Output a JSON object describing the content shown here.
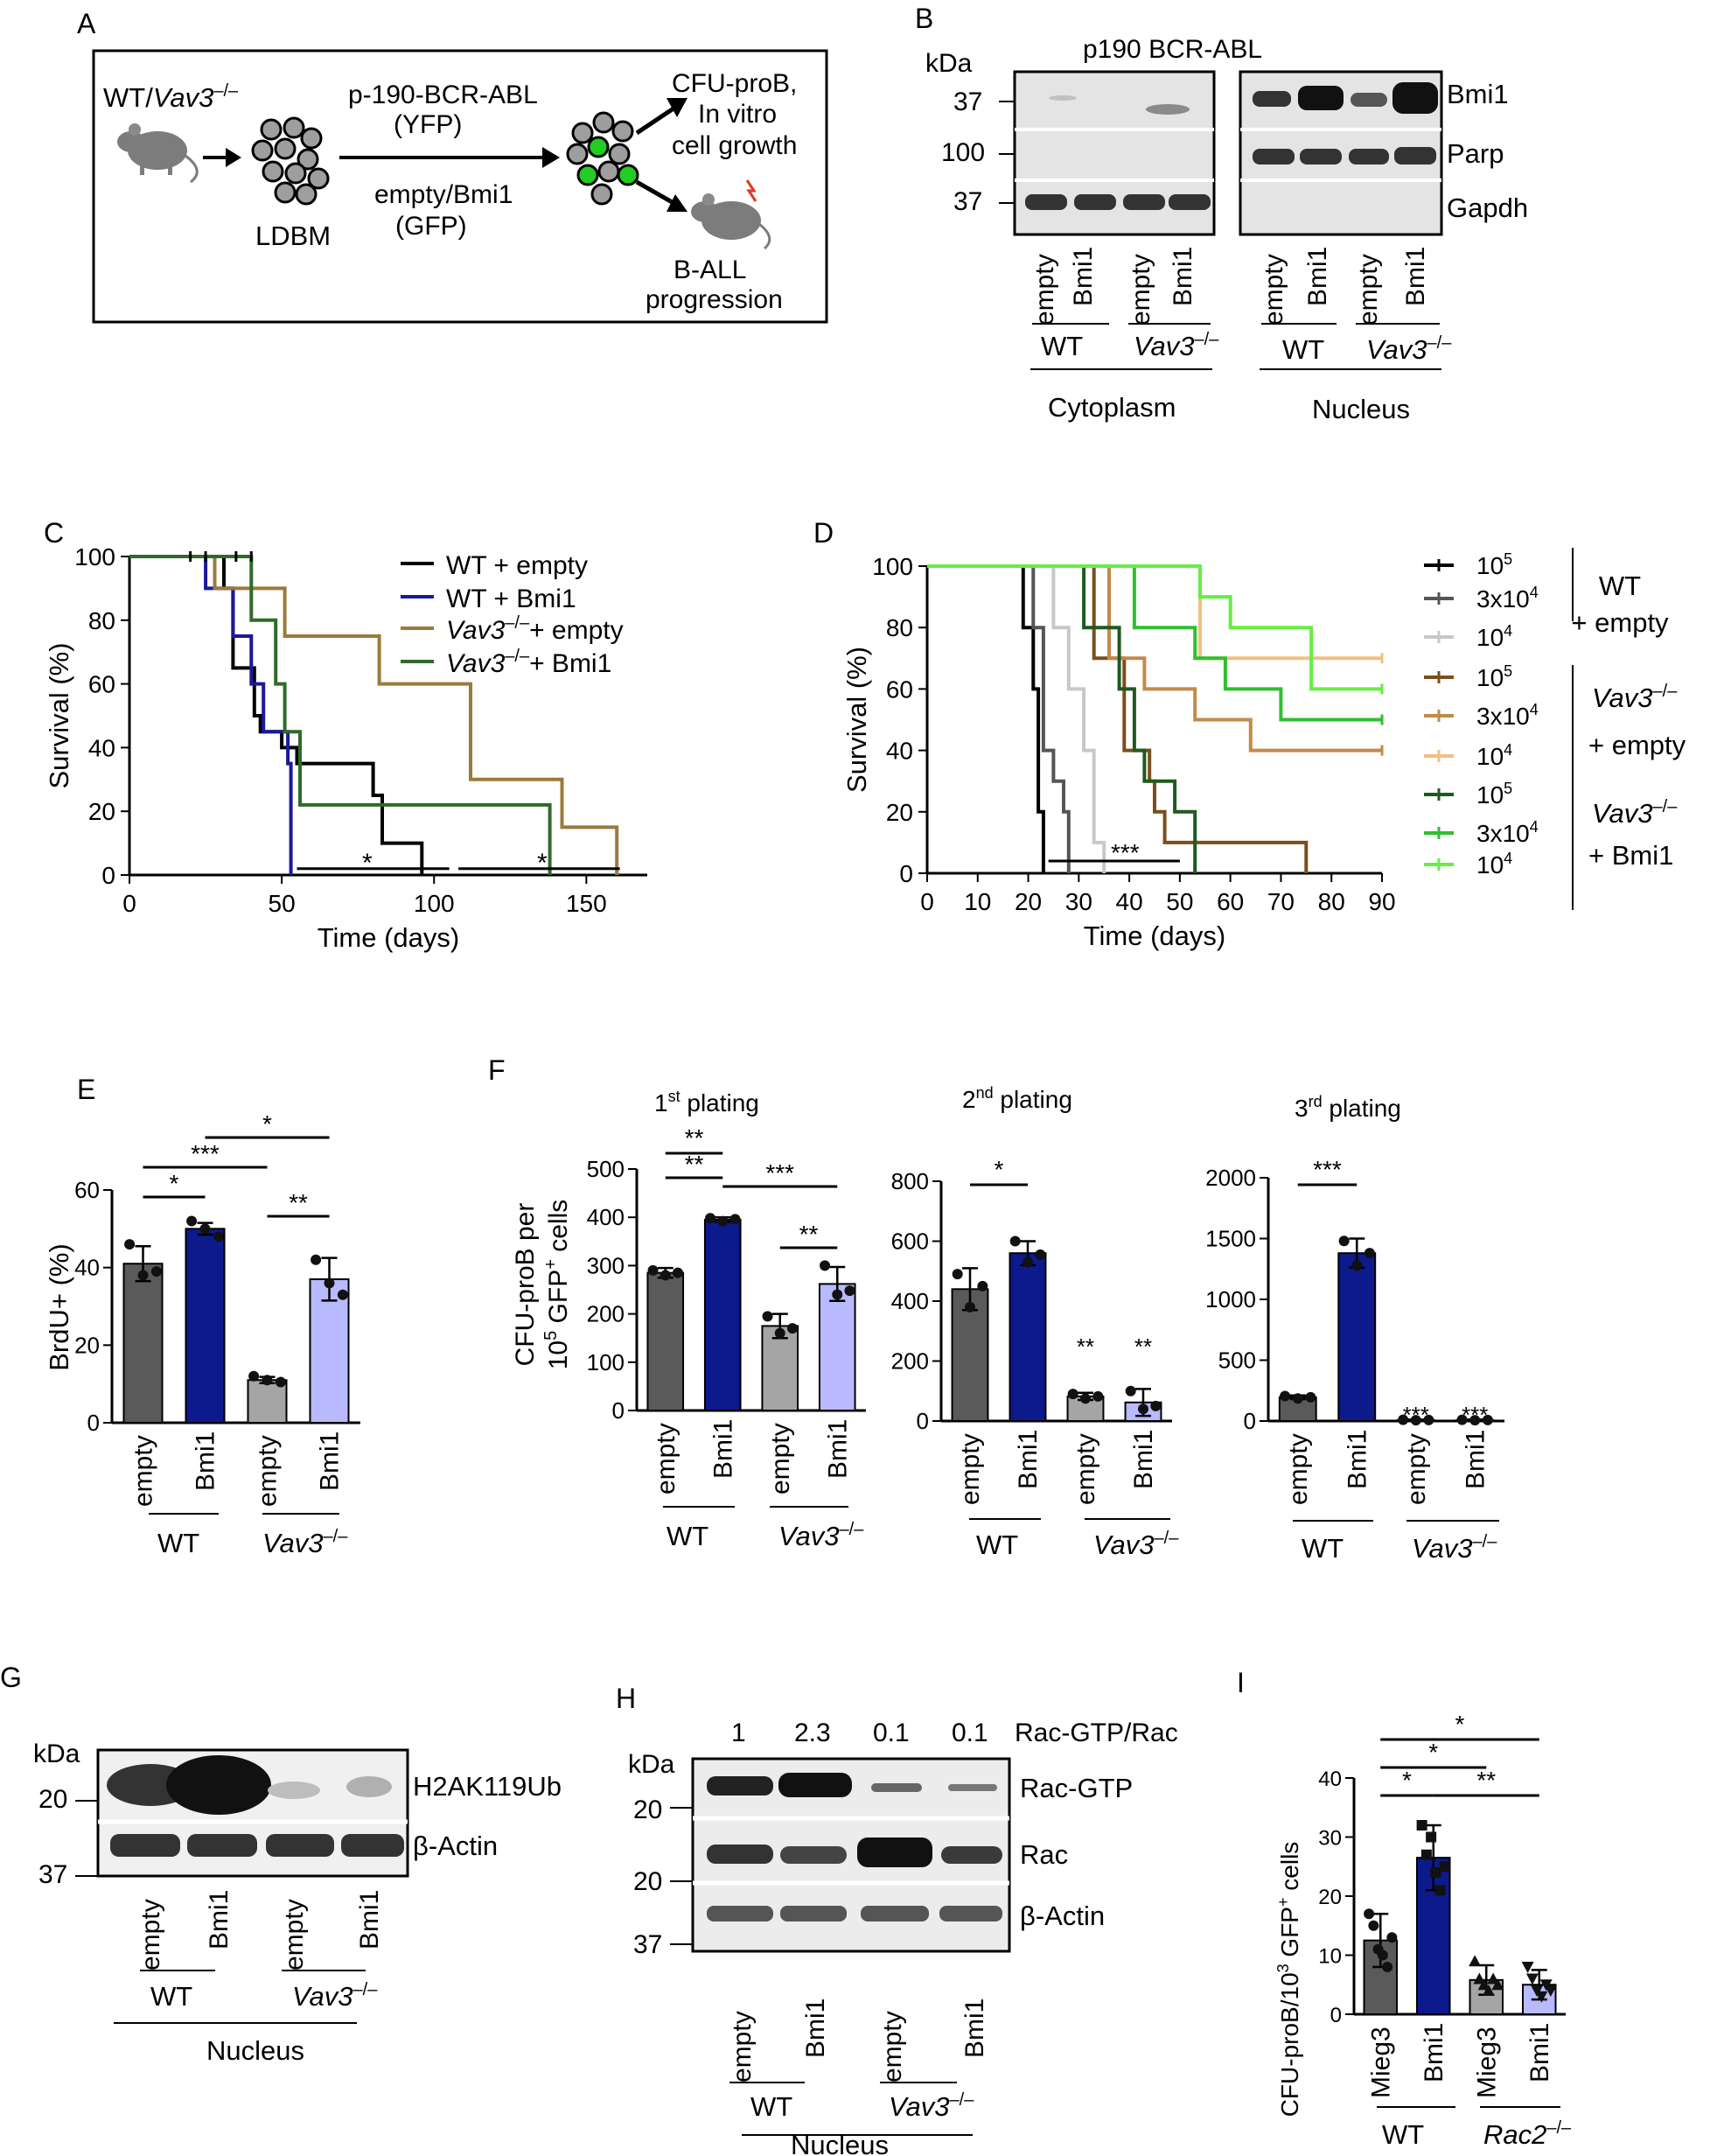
{
  "colors": {
    "wt_empty": "#5a5a5a",
    "wt_bmi1": "#0d1a8c",
    "vav_empty": "#a5a5a5",
    "vav_bmi1": "#b9b9ff",
    "surv_wt_empty": "#000000",
    "surv_wt_bmi1": "#1a1a99",
    "surv_vav_empty": "#9a7a3c",
    "surv_vav_bmi1": "#2f6b2a"
  },
  "labels": {
    "empty": "empty",
    "bmi1": "Bmi1",
    "wt": "WT",
    "vav3": "Vav3",
    "rac2": "Rac2",
    "ko_sup": "–/–",
    "mieg3": "Mieg3",
    "nucleus": "Nucleus",
    "cytoplasm": "Cytoplasm",
    "kda": "kDa"
  },
  "panelA": {
    "letter": "A",
    "mouse_label_wt": "WT/",
    "mouse_label_vav": "Vav3",
    "ldbm": "LDBM",
    "arrow_top_1": "p-190-BCR-ABL",
    "arrow_top_2": "(YFP)",
    "arrow_bot_1": "empty/Bmi1",
    "arrow_bot_2": "(GFP)",
    "out1_1": "CFU-proB,",
    "out1_2": "In vitro",
    "out1_3": "cell growth",
    "out2_1": "B-ALL",
    "out2_2": "progression"
  },
  "panelB": {
    "letter": "B",
    "title": "p190 BCR-ABL",
    "markers": [
      "37",
      "100",
      "37"
    ],
    "bands": [
      "Bmi1",
      "Parp",
      "Gapdh"
    ]
  },
  "panelC": {
    "letter": "C",
    "legend": [
      "WT + empty",
      "WT + Bmi1",
      "+ empty",
      "+ Bmi1"
    ],
    "star": "*"
  },
  "panelD": {
    "letter": "D",
    "doses": [
      "10",
      "3x10",
      "10"
    ],
    "exps": [
      "5",
      "4",
      "4"
    ],
    "group_wt": "+ empty",
    "group_vav_empty": "+ empty",
    "group_vav_bmi1": "+ Bmi1",
    "stars": "***"
  },
  "panelE": {
    "letter": "E",
    "stars": [
      "***",
      "*",
      "*",
      "**"
    ]
  },
  "panelF": {
    "letter": "F",
    "ylabel_1": "CFU-proB per",
    "ylabel_2a": "10",
    "ylabel_2b": "5",
    "ylabel_2c": " GFP",
    "ylabel_2d": "+",
    "ylabel_2e": " cells",
    "titles": [
      {
        "n": "1",
        "sup": "st",
        "rest": " plating"
      },
      {
        "n": "2",
        "sup": "nd",
        "rest": " plating"
      },
      {
        "n": "3",
        "sup": "rd",
        "rest": " plating"
      }
    ],
    "stars1": [
      "**",
      "**",
      "***",
      "**"
    ],
    "stars2": [
      "*",
      "**",
      "**"
    ],
    "stars3": [
      "***",
      "***",
      "***"
    ]
  },
  "panelG": {
    "letter": "G",
    "marker_20": "20",
    "marker_37": "37",
    "band1": "H2AK119Ub",
    "band2": "β-Actin"
  },
  "panelH": {
    "letter": "H",
    "ratios": [
      "1",
      "2.3",
      "0.1",
      "0.1"
    ],
    "ratio_label": "Rac-GTP/Rac",
    "markers": [
      "20",
      "20",
      "37"
    ],
    "bands": [
      "Rac-GTP",
      "Rac",
      "β-Actin"
    ]
  },
  "panelI": {
    "letter": "I",
    "ylabel_a": "CFU-proB/10",
    "ylabel_b": "3",
    "ylabel_c": " GFP",
    "ylabel_d": "+",
    "ylabel_e": " cells",
    "stars": [
      "*",
      "*",
      "*",
      "**"
    ]
  },
  "chart_data": [
    {
      "type": "line",
      "title": "C",
      "xlabel": "Time (days)",
      "ylabel": "Survival (%)",
      "xlim": [
        0,
        170
      ],
      "ylim": [
        0,
        100
      ],
      "xticks": [
        "0",
        "50",
        "100",
        "150"
      ],
      "yticks": [
        "0",
        "20",
        "40",
        "60",
        "80",
        "100"
      ],
      "series": [
        {
          "name": "WT + empty",
          "steps": [
            [
              0,
              100
            ],
            [
              22,
              100
            ],
            [
              22,
              100
            ],
            [
              31,
              100
            ],
            [
              31,
              90
            ],
            [
              34,
              90
            ],
            [
              34,
              65
            ],
            [
              41,
              65
            ],
            [
              41,
              50
            ],
            [
              43,
              50
            ],
            [
              43,
              45
            ],
            [
              50,
              45
            ],
            [
              50,
              40
            ],
            [
              55,
              40
            ],
            [
              55,
              35
            ],
            [
              80,
              35
            ],
            [
              80,
              25
            ],
            [
              83,
              25
            ],
            [
              83,
              10
            ],
            [
              96,
              10
            ],
            [
              96,
              0
            ]
          ]
        },
        {
          "name": "WT + Bmi1",
          "steps": [
            [
              0,
              100
            ],
            [
              25,
              100
            ],
            [
              25,
              90
            ],
            [
              34,
              90
            ],
            [
              34,
              75
            ],
            [
              40,
              75
            ],
            [
              40,
              60
            ],
            [
              44,
              60
            ],
            [
              44,
              45
            ],
            [
              52,
              45
            ],
            [
              52,
              35
            ],
            [
              53,
              35
            ],
            [
              53,
              20
            ],
            [
              53,
              0
            ]
          ]
        },
        {
          "name": "Vav3–/– + empty",
          "steps": [
            [
              0,
              100
            ],
            [
              28,
              100
            ],
            [
              28,
              90
            ],
            [
              51,
              90
            ],
            [
              51,
              75
            ],
            [
              82,
              75
            ],
            [
              82,
              60
            ],
            [
              112,
              60
            ],
            [
              112,
              30
            ],
            [
              142,
              30
            ],
            [
              142,
              15
            ],
            [
              160,
              15
            ],
            [
              160,
              0
            ]
          ]
        },
        {
          "name": "Vav3–/– + Bmi1",
          "steps": [
            [
              0,
              100
            ],
            [
              40,
              100
            ],
            [
              40,
              80
            ],
            [
              48,
              80
            ],
            [
              48,
              60
            ],
            [
              51,
              60
            ],
            [
              51,
              45
            ],
            [
              56,
              45
            ],
            [
              56,
              22
            ],
            [
              138,
              22
            ],
            [
              138,
              0
            ]
          ]
        }
      ]
    },
    {
      "type": "line",
      "title": "D",
      "xlabel": "Time (days)",
      "ylabel": "Survival (%)",
      "xlim": [
        0,
        90
      ],
      "ylim": [
        0,
        100
      ],
      "xticks": [
        "0",
        "10",
        "20",
        "30",
        "40",
        "50",
        "60",
        "70",
        "80",
        "90"
      ],
      "yticks": [
        "0",
        "20",
        "40",
        "60",
        "80",
        "100"
      ],
      "series": [
        {
          "name": "WT 10^5",
          "steps": [
            [
              0,
              100
            ],
            [
              19,
              100
            ],
            [
              19,
              80
            ],
            [
              21,
              80
            ],
            [
              21,
              60
            ],
            [
              22,
              60
            ],
            [
              22,
              20
            ],
            [
              23,
              20
            ],
            [
              23,
              0
            ]
          ]
        },
        {
          "name": "WT 3x10^4",
          "steps": [
            [
              0,
              100
            ],
            [
              21,
              100
            ],
            [
              21,
              80
            ],
            [
              23,
              80
            ],
            [
              23,
              40
            ],
            [
              25,
              40
            ],
            [
              25,
              30
            ],
            [
              27,
              30
            ],
            [
              27,
              20
            ],
            [
              28,
              20
            ],
            [
              28,
              0
            ]
          ]
        },
        {
          "name": "WT 10^4",
          "steps": [
            [
              0,
              100
            ],
            [
              25,
              100
            ],
            [
              25,
              80
            ],
            [
              28,
              80
            ],
            [
              28,
              60
            ],
            [
              31,
              60
            ],
            [
              31,
              40
            ],
            [
              33,
              40
            ],
            [
              33,
              10
            ],
            [
              35,
              10
            ],
            [
              35,
              0
            ]
          ]
        },
        {
          "name": "Vav3 empty 10^5",
          "steps": [
            [
              0,
              100
            ],
            [
              33,
              100
            ],
            [
              33,
              70
            ],
            [
              39,
              70
            ],
            [
              39,
              40
            ],
            [
              44,
              40
            ],
            [
              44,
              30
            ],
            [
              45,
              30
            ],
            [
              45,
              20
            ],
            [
              47,
              20
            ],
            [
              47,
              10
            ],
            [
              75,
              10
            ],
            [
              75,
              0
            ]
          ]
        },
        {
          "name": "Vav3 empty 3x10^4",
          "steps": [
            [
              0,
              100
            ],
            [
              36,
              100
            ],
            [
              36,
              70
            ],
            [
              43,
              70
            ],
            [
              43,
              60
            ],
            [
              53,
              60
            ],
            [
              53,
              50
            ],
            [
              64,
              50
            ],
            [
              64,
              40
            ],
            [
              90,
              40
            ]
          ]
        },
        {
          "name": "Vav3 empty 10^4",
          "steps": [
            [
              0,
              100
            ],
            [
              54,
              100
            ],
            [
              54,
              70
            ],
            [
              90,
              70
            ]
          ]
        },
        {
          "name": "Vav3 Bmi1 10^5",
          "steps": [
            [
              0,
              100
            ],
            [
              31,
              100
            ],
            [
              31,
              80
            ],
            [
              38,
              80
            ],
            [
              38,
              60
            ],
            [
              41,
              60
            ],
            [
              41,
              40
            ],
            [
              43,
              40
            ],
            [
              43,
              30
            ],
            [
              49,
              30
            ],
            [
              49,
              20
            ],
            [
              53,
              20
            ],
            [
              53,
              0
            ]
          ]
        },
        {
          "name": "Vav3 Bmi1 3x10^4",
          "steps": [
            [
              0,
              100
            ],
            [
              41,
              100
            ],
            [
              41,
              80
            ],
            [
              53,
              80
            ],
            [
              53,
              70
            ],
            [
              59,
              70
            ],
            [
              59,
              60
            ],
            [
              70,
              60
            ],
            [
              70,
              50
            ],
            [
              90,
              50
            ]
          ]
        },
        {
          "name": "Vav3 Bmi1 10^4",
          "steps": [
            [
              0,
              100
            ],
            [
              54,
              100
            ],
            [
              54,
              90
            ],
            [
              60,
              90
            ],
            [
              60,
              80
            ],
            [
              76,
              80
            ],
            [
              76,
              60
            ],
            [
              90,
              60
            ]
          ]
        }
      ]
    },
    {
      "type": "bar",
      "title": "E",
      "ylabel": "BrdU+ (%)",
      "ylim": [
        0,
        60
      ],
      "yticks": [
        "0",
        "20",
        "40",
        "60"
      ],
      "categories": [
        "WT empty",
        "WT Bmi1",
        "Vav3–/– empty",
        "Vav3–/– Bmi1"
      ],
      "values": [
        41,
        50,
        11,
        37
      ],
      "errors": [
        4.5,
        1.5,
        0.8,
        5.5
      ],
      "points": [
        [
          46,
          38,
          39
        ],
        [
          52,
          50,
          48
        ],
        [
          12,
          11,
          10.5
        ],
        [
          42,
          36,
          33
        ]
      ]
    },
    {
      "type": "bar",
      "title": "1st plating",
      "ylim": [
        0,
        500
      ],
      "yticks": [
        "0",
        "100",
        "200",
        "300",
        "400",
        "500"
      ],
      "categories": [
        "WT empty",
        "WT Bmi1",
        "Vav3–/– empty",
        "Vav3–/– Bmi1"
      ],
      "values": [
        285,
        395,
        175,
        262
      ],
      "errors": [
        10,
        5,
        25,
        35
      ],
      "points": [
        [
          290,
          280,
          285
        ],
        [
          398,
          392,
          396
        ],
        [
          195,
          160,
          170
        ],
        [
          300,
          240,
          248
        ]
      ]
    },
    {
      "type": "bar",
      "title": "2nd plating",
      "ylim": [
        0,
        800
      ],
      "yticks": [
        "0",
        "200",
        "400",
        "600",
        "800"
      ],
      "categories": [
        "WT empty",
        "WT Bmi1",
        "Vav3–/– empty",
        "Vav3–/– Bmi1"
      ],
      "values": [
        440,
        560,
        82,
        62
      ],
      "errors": [
        70,
        40,
        12,
        45
      ],
      "points": [
        [
          490,
          380,
          450
        ],
        [
          600,
          530,
          555
        ],
        [
          90,
          75,
          82
        ],
        [
          100,
          40,
          50
        ]
      ]
    },
    {
      "type": "bar",
      "title": "3rd plating",
      "ylim": [
        0,
        2000
      ],
      "yticks": [
        "0",
        "500",
        "1000",
        "1500",
        "2000"
      ],
      "categories": [
        "WT empty",
        "WT Bmi1",
        "Vav3–/– empty",
        "Vav3–/– Bmi1"
      ],
      "values": [
        195,
        1380,
        8,
        8
      ],
      "errors": [
        15,
        120,
        4,
        4
      ],
      "points": [
        [
          205,
          185,
          195
        ],
        [
          1480,
          1280,
          1380
        ],
        [
          10,
          6,
          8
        ],
        [
          10,
          6,
          8
        ]
      ]
    },
    {
      "type": "bar",
      "title": "I",
      "ylim": [
        0,
        40
      ],
      "yticks": [
        "0",
        "10",
        "20",
        "30",
        "40"
      ],
      "categories": [
        "WT Mieg3",
        "WT Bmi1",
        "Rac2–/– Mieg3",
        "Rac2–/– Bmi1"
      ],
      "values": [
        12.5,
        26.5,
        5.8,
        5.0
      ],
      "errors": [
        4.5,
        5.5,
        2.5,
        2.5
      ],
      "points": [
        [
          17,
          15,
          11,
          10,
          8,
          13
        ],
        [
          32,
          27,
          30,
          24,
          21,
          25
        ],
        [
          9,
          6,
          5,
          4,
          6,
          5
        ],
        [
          8,
          6,
          4,
          3,
          5,
          4
        ]
      ]
    }
  ]
}
